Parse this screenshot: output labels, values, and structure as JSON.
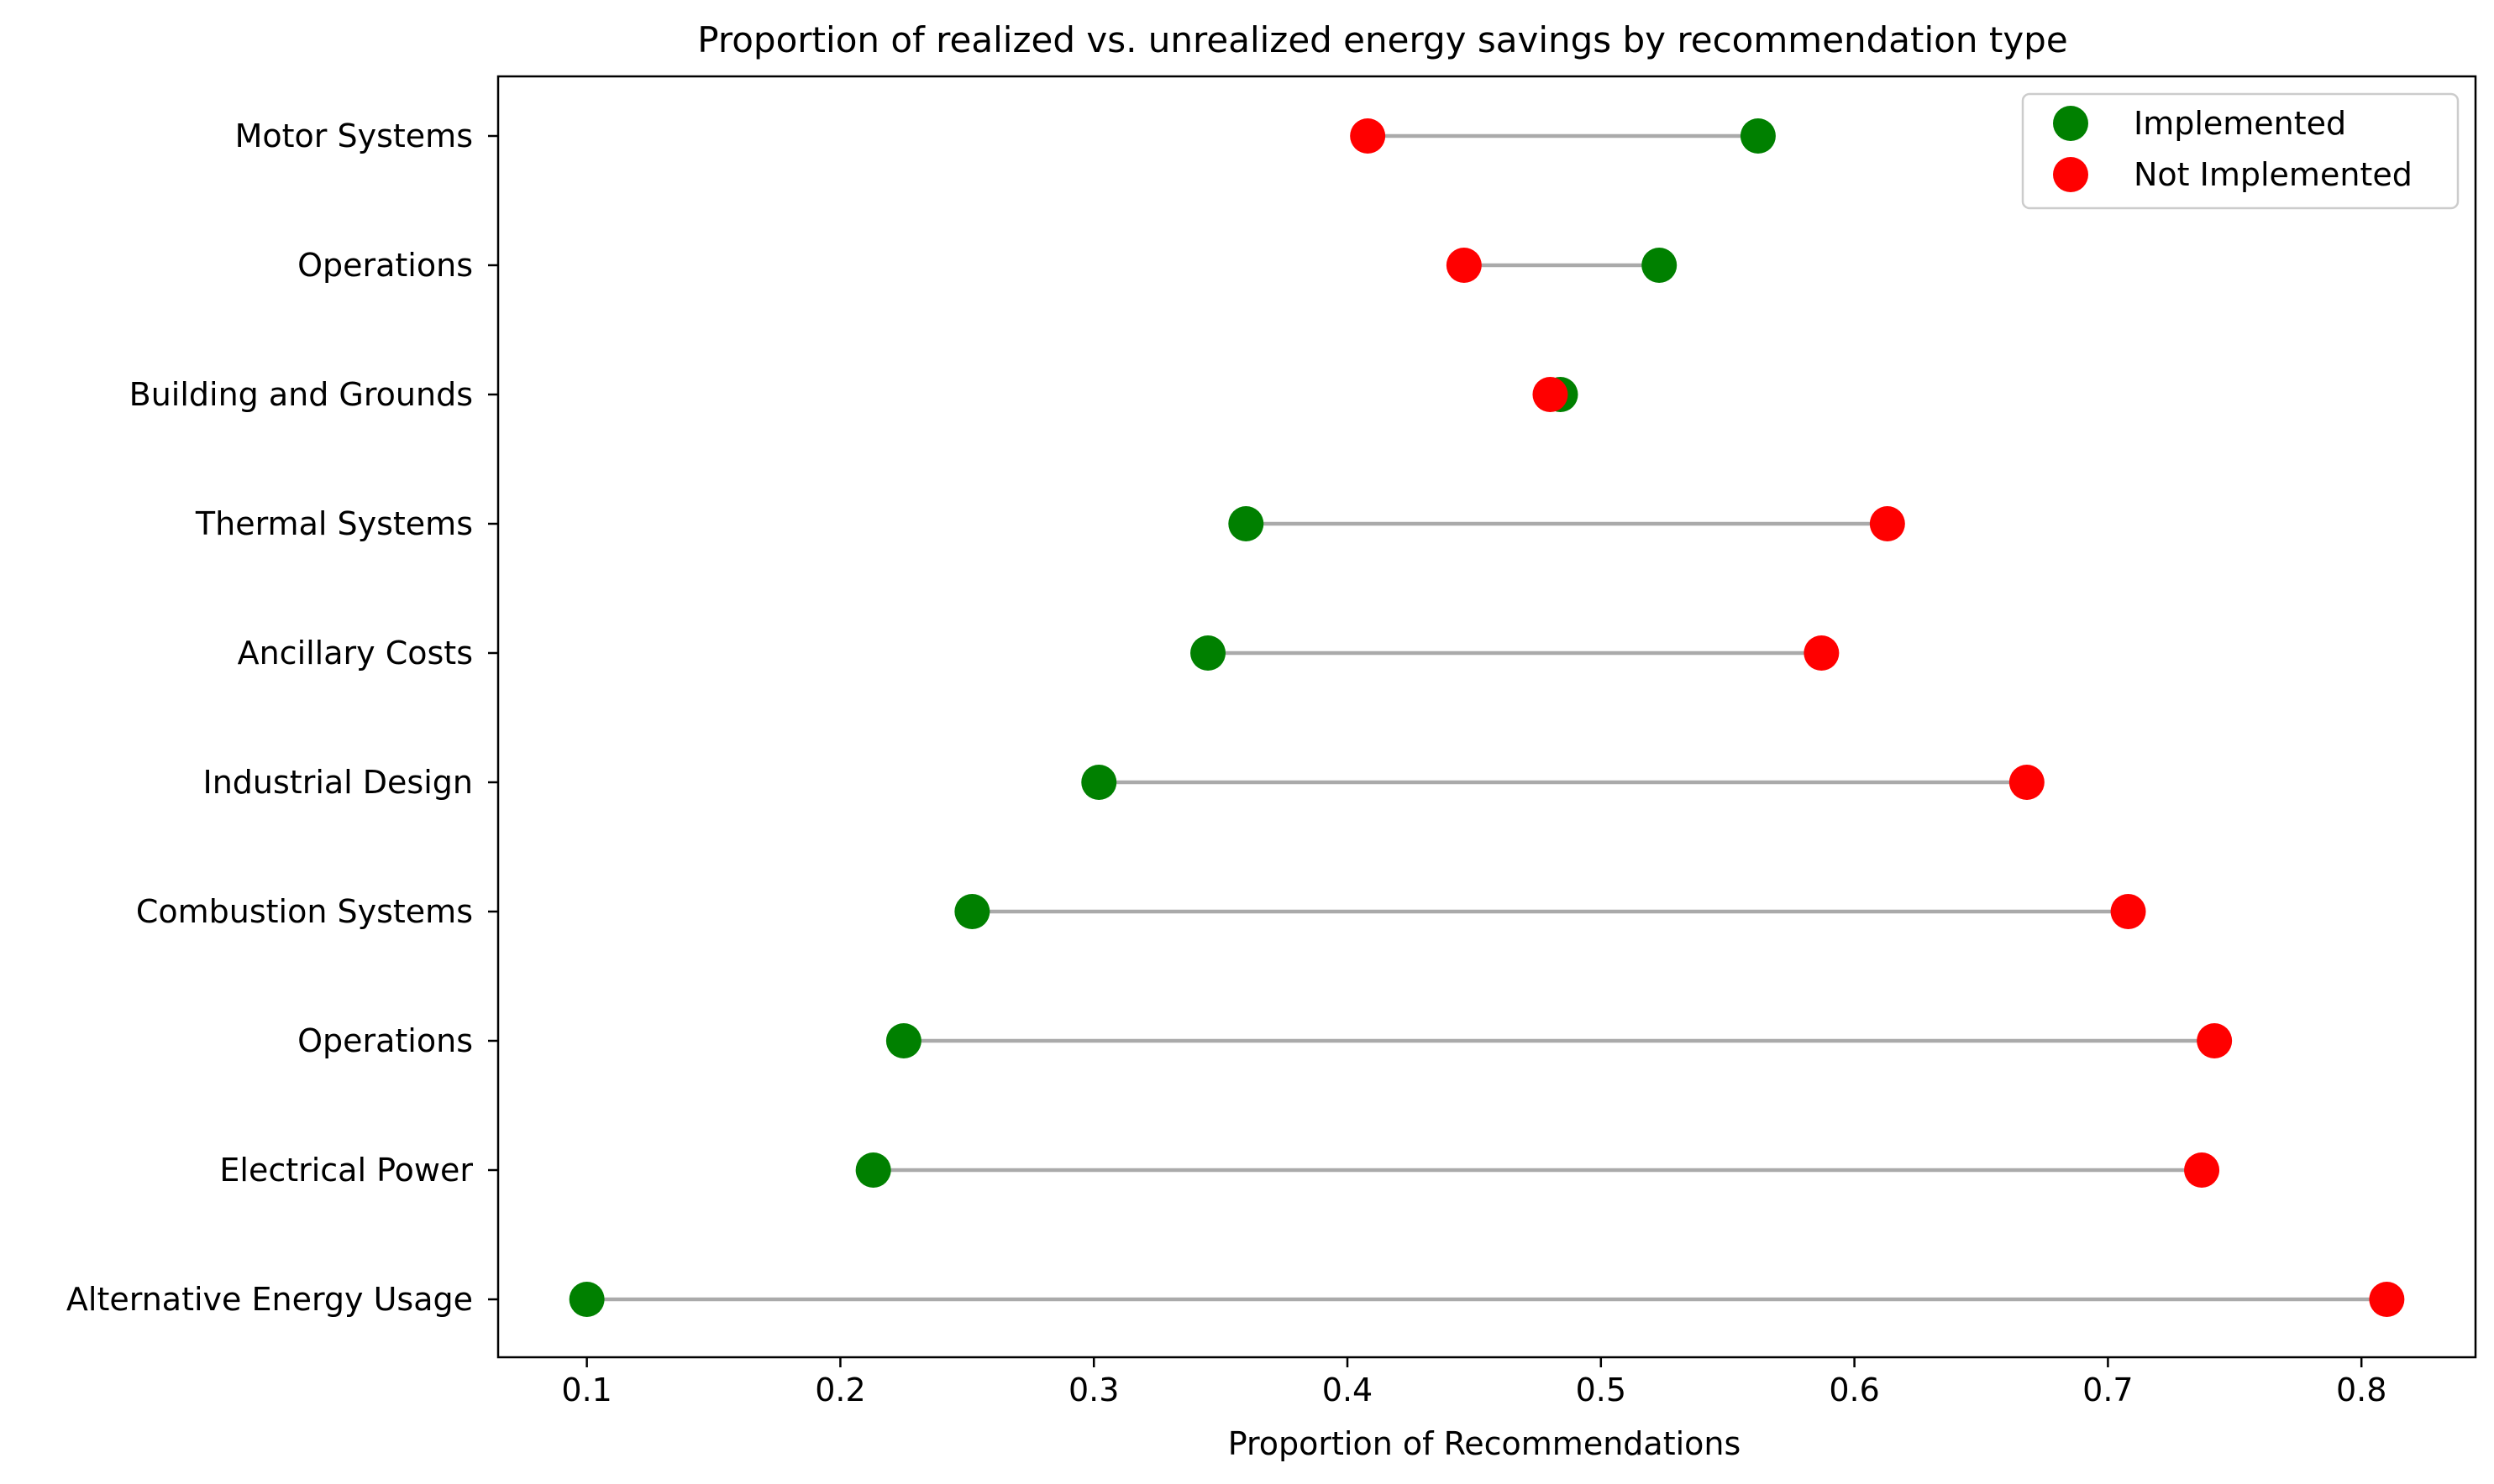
{
  "chart_data": {
    "type": "dumbbell",
    "title": "Proportion of realized vs. unrealized energy savings by recommendation type",
    "xlabel": "Proportion of Recommendations",
    "ylabel": "",
    "xlim": [
      0.065,
      0.845
    ],
    "xticks": [
      "0.1",
      "0.2",
      "0.3",
      "0.4",
      "0.5",
      "0.6",
      "0.7",
      "0.8"
    ],
    "grid": false,
    "legend_position": "top-right",
    "categories": [
      "Motor Systems",
      "Operations",
      "Building and Grounds",
      "Thermal Systems",
      "Ancillary Costs",
      "Industrial Design",
      "Combustion Systems",
      "Operations",
      "Electrical Power",
      "Alternative Energy Usage"
    ],
    "series": [
      {
        "name": "Implemented",
        "color": "#008000",
        "values": [
          0.562,
          0.523,
          0.484,
          0.36,
          0.345,
          0.302,
          0.252,
          0.225,
          0.213,
          0.1
        ]
      },
      {
        "name": "Not Implemented",
        "color": "#ff0000",
        "values": [
          0.408,
          0.446,
          0.48,
          0.613,
          0.587,
          0.668,
          0.708,
          0.742,
          0.737,
          0.81
        ]
      }
    ],
    "connector_color": "#aaaaaa"
  }
}
